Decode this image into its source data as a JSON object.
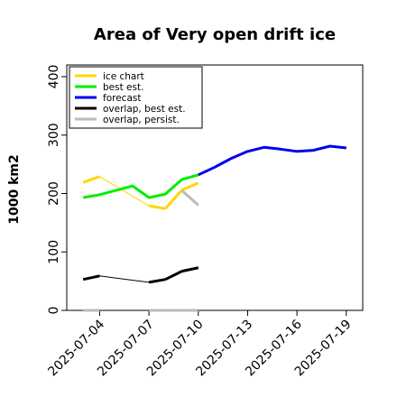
{
  "chart_data": {
    "type": "line",
    "title": "Area of Very open drift ice",
    "ylabel": "1000 km2",
    "xlabel": "",
    "ylim": [
      0,
      420
    ],
    "xlim": [
      "2025-07-02",
      "2025-07-20"
    ],
    "yticks": [
      0,
      100,
      200,
      300,
      400
    ],
    "xticks": [
      {
        "date": "2025-07-04",
        "label": "2025-07-04",
        "color": "#000000"
      },
      {
        "date": "2025-07-07",
        "label": "2025-07-07",
        "color": "#000000"
      },
      {
        "date": "2025-07-10",
        "label": "2025-07-10",
        "color": "#228b22"
      },
      {
        "date": "2025-07-13",
        "label": "2025-07-13",
        "color": "#000000"
      },
      {
        "date": "2025-07-16",
        "label": "2025-07-16",
        "color": "#000000"
      },
      {
        "date": "2025-07-19",
        "label": "2025-07-19",
        "color": "#000000"
      }
    ],
    "grid": false,
    "legend_position": "top-left",
    "series": [
      {
        "name": "ice chart",
        "color": "#ffd700",
        "x": [
          "2025-07-03",
          "2025-07-04",
          "2025-07-07",
          "2025-07-08",
          "2025-07-09",
          "2025-07-10"
        ],
        "y": [
          219,
          229,
          179,
          174,
          206,
          218
        ]
      },
      {
        "name": "best est.",
        "color": "#00ee00",
        "x": [
          "2025-07-03",
          "2025-07-04",
          "2025-07-06",
          "2025-07-07",
          "2025-07-08",
          "2025-07-09",
          "2025-07-10"
        ],
        "y": [
          193,
          198,
          213,
          193,
          199,
          224,
          232
        ]
      },
      {
        "name": "forecast",
        "color": "#0000ee",
        "x": [
          "2025-07-10",
          "2025-07-11",
          "2025-07-12",
          "2025-07-13",
          "2025-07-14",
          "2025-07-15",
          "2025-07-16",
          "2025-07-17",
          "2025-07-18",
          "2025-07-19"
        ],
        "y": [
          232,
          245,
          260,
          272,
          279,
          276,
          272,
          274,
          281,
          278
        ]
      },
      {
        "name": "overlap, best est.",
        "color": "#000000",
        "x": [
          "2025-07-03",
          "2025-07-04",
          "2025-07-07",
          "2025-07-08",
          "2025-07-09",
          "2025-07-10"
        ],
        "y": [
          53,
          59,
          48,
          53,
          67,
          73
        ]
      },
      {
        "name": "overlap, persist.",
        "color": "#bbbbbb",
        "segments": [
          {
            "x": [
              "2025-07-03",
              "2025-07-04"
            ],
            "y": [
              0,
              0
            ]
          },
          {
            "x": [
              "2025-07-07",
              "2025-07-10"
            ],
            "y": [
              0,
              0
            ]
          },
          {
            "x": [
              "2025-07-09",
              "2025-07-10"
            ],
            "y": [
              205,
              180
            ]
          }
        ]
      }
    ]
  }
}
